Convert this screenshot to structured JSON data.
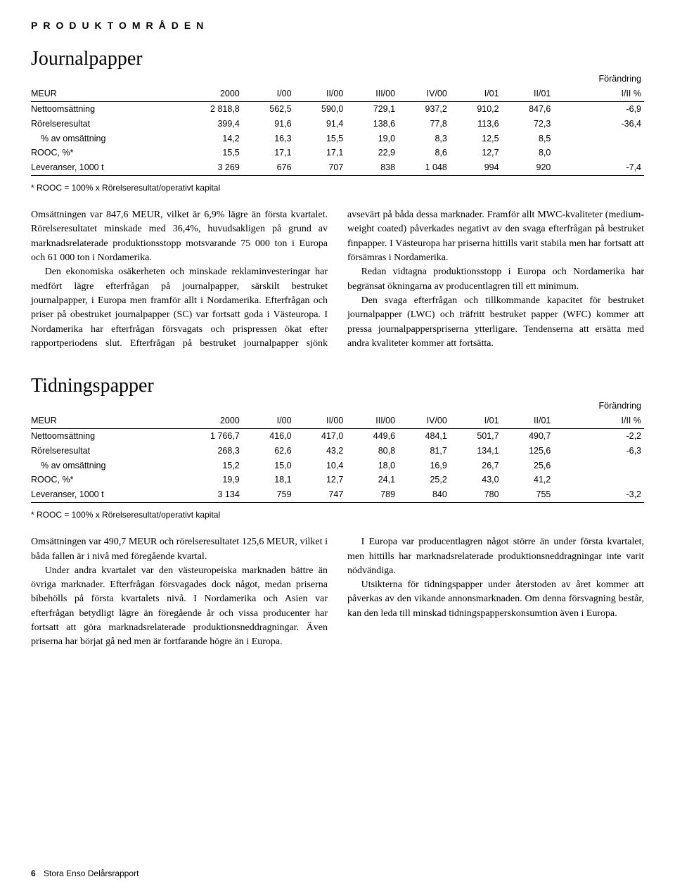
{
  "section_label": "PRODUKTOMRÅDEN",
  "change_label": "Förändring",
  "columns": [
    "MEUR",
    "2000",
    "I/00",
    "II/00",
    "III/00",
    "IV/00",
    "I/01",
    "II/01",
    "I/II %"
  ],
  "footnote_text": "* ROOC = 100% x Rörelseresultat/operativt kapital",
  "footer": {
    "page": "6",
    "text": "Stora Enso Delårsrapport"
  },
  "journal": {
    "title": "Journalpapper",
    "rows": [
      [
        "Nettoomsättning",
        "2 818,8",
        "562,5",
        "590,0",
        "729,1",
        "937,2",
        "910,2",
        "847,6",
        "-6,9"
      ],
      [
        "Rörelseresultat",
        "399,4",
        "91,6",
        "91,4",
        "138,6",
        "77,8",
        "113,6",
        "72,3",
        "-36,4"
      ],
      [
        "  % av omsättning",
        "14,2",
        "16,3",
        "15,5",
        "19,0",
        "8,3",
        "12,5",
        "8,5",
        ""
      ],
      [
        "ROOC, %*",
        "15,5",
        "17,1",
        "17,1",
        "22,9",
        "8,6",
        "12,7",
        "8,0",
        ""
      ],
      [
        "Leveranser, 1000 t",
        "3 269",
        "676",
        "707",
        "838",
        "1 048",
        "994",
        "920",
        "-7,4"
      ]
    ],
    "body": [
      "Omsättningen var 847,6 MEUR, vilket är 6,9% lägre än första kvartalet. Rörelseresultatet minskade med 36,4%, huvudsakligen på grund av marknadsrelaterade produktionsstopp motsvarande 75 000 ton i Europa och 61 000 ton i Nordamerika.",
      "Den ekonomiska osäkerheten och minskade reklaminvesteringar har medfört lägre efterfrågan på journalpapper, särskilt bestruket journalpapper, i Europa men framför allt i Nordamerika. Efterfrågan och priser på obestruket journalpapper (SC) var fortsatt goda i Västeuropa. I Nordamerika har efterfrågan försvagats och prispressen ökat efter rapportperiodens slut. Efterfrågan på bestruket journalpapper sjönk avsevärt på båda dessa marknader. Framför allt MWC-kvaliteter (medium-weight coated) påverkades negativt av den svaga efterfrågan på bestruket finpapper. I Västeuropa har priserna hittills varit stabila men har fortsatt att försämras i Nordamerika.",
      "Redan vidtagna produktionsstopp i Europa och Nordamerika har begränsat ökningarna av producentlagren till ett minimum.",
      "Den svaga efterfrågan och tillkommande kapacitet för bestruket journalpapper (LWC) och träfritt bestruket papper (WFC) kommer att pressa journalpapperspriserna ytterligare. Tendenserna att ersätta med andra kvaliteter kommer att fortsätta."
    ]
  },
  "tidning": {
    "title": "Tidningspapper",
    "rows": [
      [
        "Nettoomsättning",
        "1 766,7",
        "416,0",
        "417,0",
        "449,6",
        "484,1",
        "501,7",
        "490,7",
        "-2,2"
      ],
      [
        "Rörelseresultat",
        "268,3",
        "62,6",
        "43,2",
        "80,8",
        "81,7",
        "134,1",
        "125,6",
        "-6,3"
      ],
      [
        "  % av omsättning",
        "15,2",
        "15,0",
        "10,4",
        "18,0",
        "16,9",
        "26,7",
        "25,6",
        ""
      ],
      [
        "ROOC, %*",
        "19,9",
        "18,1",
        "12,7",
        "24,1",
        "25,2",
        "43,0",
        "41,2",
        ""
      ],
      [
        "Leveranser, 1000 t",
        "3 134",
        "759",
        "747",
        "789",
        "840",
        "780",
        "755",
        "-3,2"
      ]
    ],
    "body": [
      "Omsättningen var 490,7 MEUR och rörelseresultatet 125,6 MEUR, vilket i båda fallen är i nivå med föregående kvartal.",
      "Under andra kvartalet var den västeuropeiska marknaden bättre än övriga marknader. Efterfrågan försvagades dock något, medan priserna bibehölls på första kvartalets nivå. I Nordamerika och Asien var efterfrågan betydligt lägre än föregående år och vissa producenter har fortsatt att göra marknadsrelaterade produktionsneddragningar. Även priserna har börjat gå ned men är fortfarande högre än i Europa.",
      "I Europa var producentlagren något större än under första kvartalet, men hittills har marknadsrelaterade produktionsneddragningar inte varit nödvändiga.",
      "Utsikterna för tidningspapper under återstoden av året kommer att påverkas av den vikande annonsmarknaden. Om denna försvagning består, kan den leda till minskad tidningspapperskonsumtion även i Europa."
    ]
  }
}
